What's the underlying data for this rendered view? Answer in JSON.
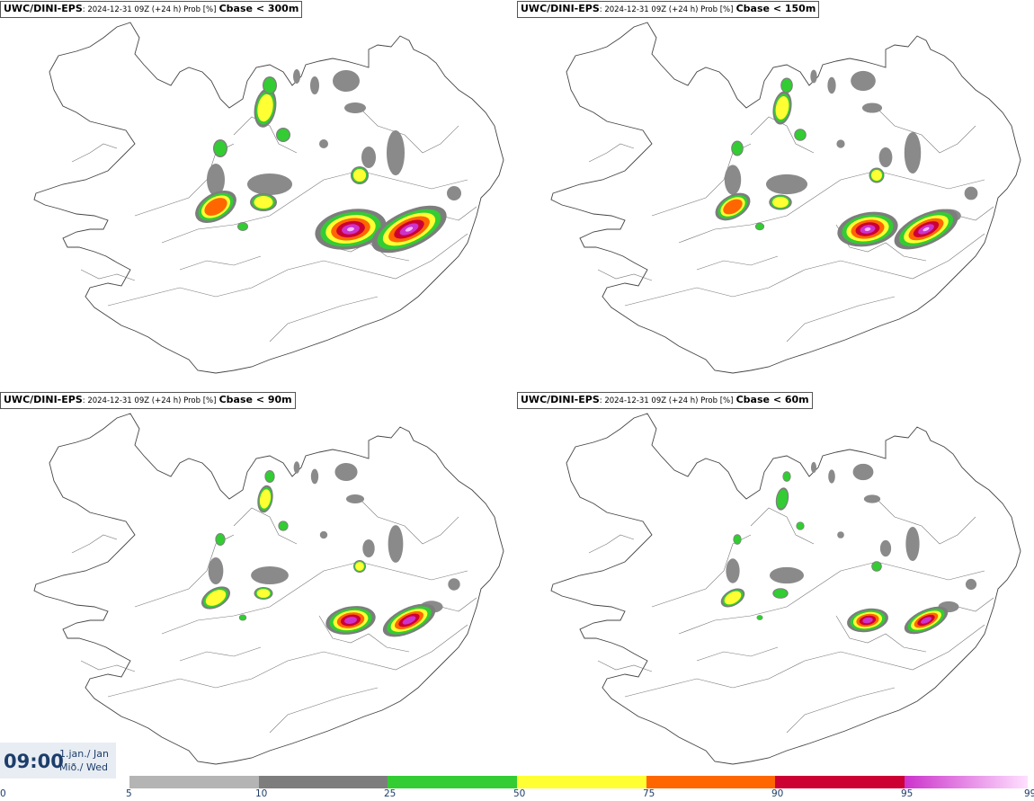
{
  "panels": [
    {
      "model": "UWC/DINI-EPS",
      "info": ": 2024-12-31 09Z (+24 h) Prob [%]",
      "threshold": "Cbase < 300m",
      "scale": 1.0
    },
    {
      "model": "UWC/DINI-EPS",
      "info": ": 2024-12-31 09Z (+24 h) Prob [%]",
      "threshold": "Cbase < 150m",
      "scale": 0.85
    },
    {
      "model": "UWC/DINI-EPS",
      "info": ": 2024-12-31 09Z (+24 h) Prob [%]",
      "threshold": "Cbase < 90m",
      "scale": 0.7
    },
    {
      "model": "UWC/DINI-EPS",
      "info": ": 2024-12-31 09Z (+24 h) Prob [%]",
      "threshold": "Cbase < 60m",
      "scale": 0.58
    }
  ],
  "valid_time": {
    "time": "09:00",
    "date_line1": "1.jan./ Jan",
    "date_line2": "Mið./ Wed"
  },
  "colorbar": {
    "segments": [
      {
        "from": 5,
        "to": 10,
        "color": "#b4b4b4"
      },
      {
        "from": 10,
        "to": 25,
        "color": "#7d7d7d"
      },
      {
        "from": 25,
        "to": 50,
        "color": "#33cc33"
      },
      {
        "from": 50,
        "to": 75,
        "color": "#ffff33"
      },
      {
        "from": 75,
        "to": 90,
        "color": "#ff6600"
      },
      {
        "from": 90,
        "to": 95,
        "color": "#cc0033"
      },
      {
        "from": 95,
        "to": 99,
        "color": "#cc33cc"
      }
    ],
    "ticks": [
      "0",
      "5",
      "10",
      "25",
      "50",
      "75",
      "90",
      "95",
      "99"
    ]
  }
}
